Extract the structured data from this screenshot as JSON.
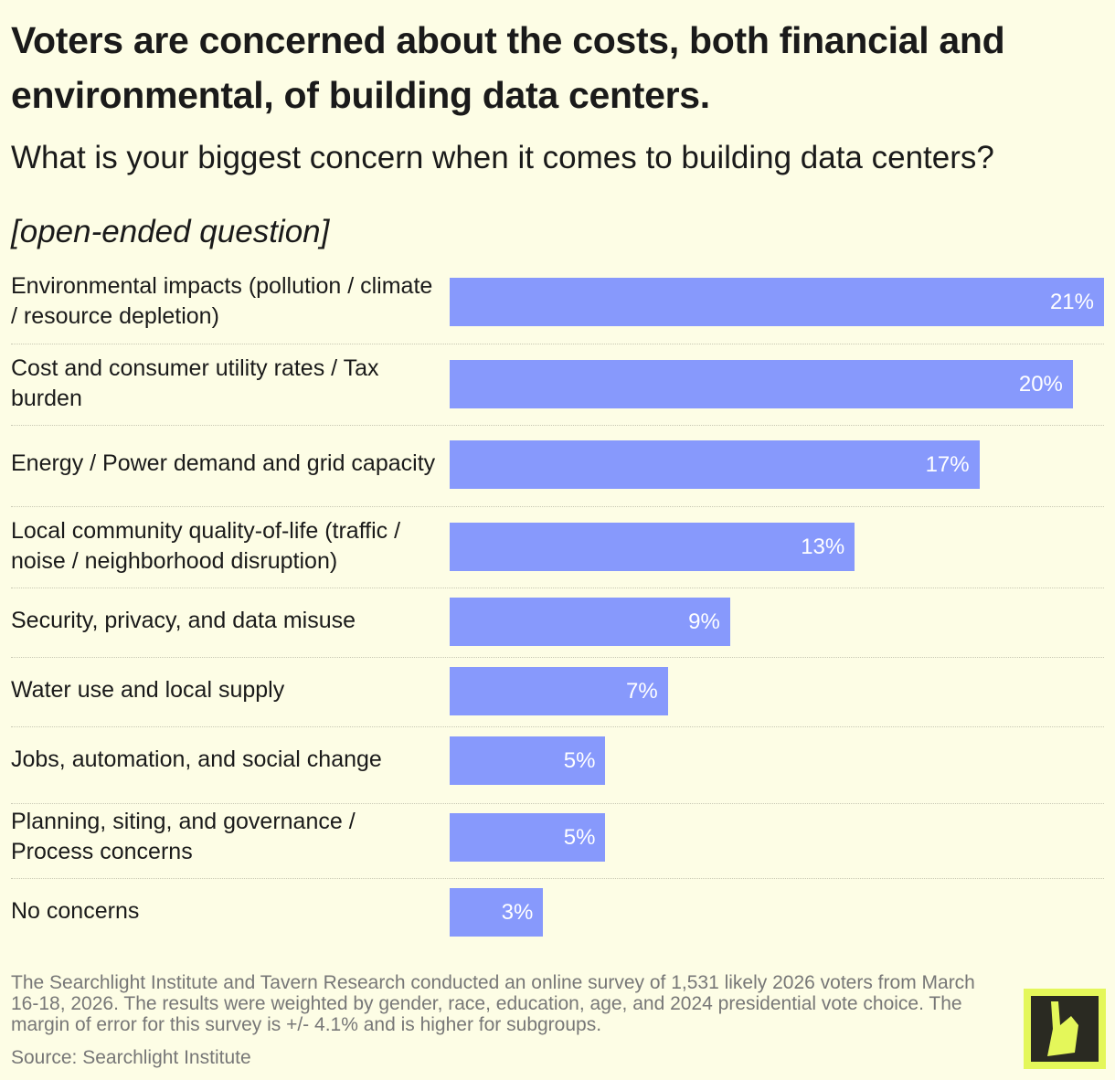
{
  "chart_data": {
    "type": "hbar",
    "title": "Voters are concerned about the costs, both financial and environmental, of building data centers.",
    "subtitle": "What is your biggest concern when it comes to building data centers?",
    "note": "[open-ended question]",
    "categories": [
      "Environmental impacts (pollution / climate / resource depletion)",
      "Cost and consumer utility rates / Tax burden",
      "Energy / Power demand and grid capacity",
      "Local community quality-of-life (traffic / noise / neighborhood disruption)",
      "Security, privacy, and data misuse",
      "Water use and local supply",
      "Jobs, automation, and social change",
      "Planning, siting, and governance / Process concerns",
      "No concerns"
    ],
    "values": [
      21,
      20,
      17,
      13,
      9,
      7,
      5,
      5,
      3
    ],
    "value_labels": [
      "21%",
      "20%",
      "17%",
      "13%",
      "9%",
      "7%",
      "5%",
      "5%",
      "3%"
    ],
    "color": "#8799fc",
    "footnote": "The Searchlight Institute and Tavern Research conducted an online survey of 1,531 likely 2026 voters from March 16-18, 2026. The results were weighted by gender, race, education, age, and 2024 presidential vote choice. The margin of error for this survey is +/- 4.1% and is higher for subgroups.",
    "source": "Source: Searchlight Institute"
  }
}
